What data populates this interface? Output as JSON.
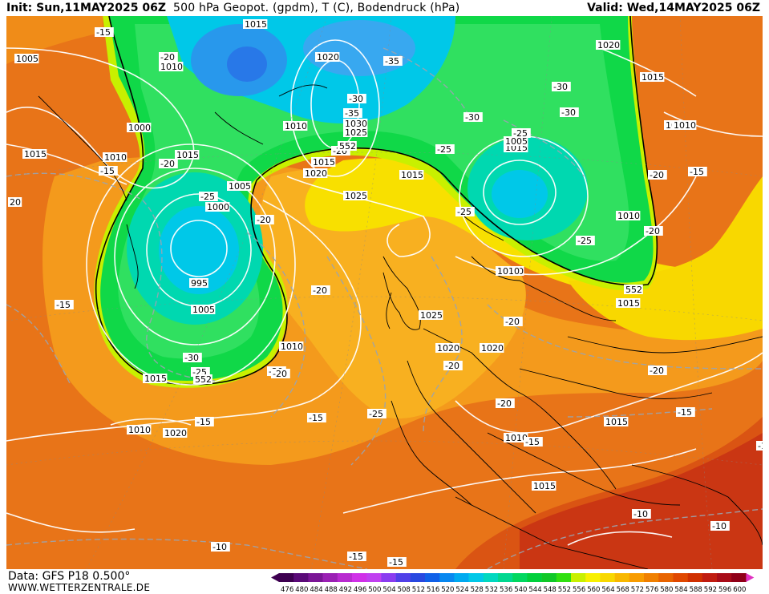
{
  "header": {
    "init": "Init: Sun,11MAY2025 06Z",
    "title": "500 hPa Geopot. (gpdm), T (C), Bodendruck (hPa)",
    "valid": "Valid: Wed,14MAY2025 06Z"
  },
  "footer": {
    "data_source": "Data: GFS P18 0.500°",
    "website": "WWW.WETTERZENTRALE.DE"
  },
  "colorbar": {
    "ticks": [
      "476",
      "480",
      "484",
      "488",
      "492",
      "496",
      "500",
      "504",
      "508",
      "512",
      "516",
      "520",
      "524",
      "528",
      "532",
      "536",
      "540",
      "544",
      "548",
      "552",
      "556",
      "560",
      "564",
      "568",
      "572",
      "576",
      "580",
      "584",
      "588",
      "592",
      "596",
      "600"
    ],
    "colors": [
      "#3d0050",
      "#5a0a78",
      "#7a1596",
      "#9a20b4",
      "#b82ad0",
      "#d030e8",
      "#c040f0",
      "#8a3cf0",
      "#5040e8",
      "#2848e0",
      "#1060e8",
      "#0888f0",
      "#00aaf0",
      "#00c8e8",
      "#00d8c0",
      "#00d890",
      "#00d860",
      "#00d03c",
      "#10c828",
      "#30e010",
      "#c8f000",
      "#f8f000",
      "#f8d800",
      "#f8b800",
      "#f89c00",
      "#f08000",
      "#e86400",
      "#e04800",
      "#d03000",
      "#c01c10",
      "#a80c18",
      "#900018"
    ],
    "min_marker": "◀",
    "max_marker": "▶"
  },
  "map": {
    "geopotential_552_label": "552",
    "pressure_labels": [
      "1015",
      "1010",
      "1005",
      "1000",
      "1015",
      "1010",
      "1020",
      "1010",
      "1030",
      "1025",
      "1015",
      "1020",
      "1015",
      "1025",
      "1005",
      "1000",
      "995",
      "1005",
      "1010",
      "1015",
      "1010",
      "1020",
      "1015",
      "1015",
      "1025",
      "1020",
      "1020",
      "1020",
      "1015",
      "1015",
      "1010",
      "1015",
      "1010",
      "1005",
      "1010",
      "1015",
      "1020",
      "1005",
      "20",
      "1010"
    ],
    "temperature_labels": [
      "-15",
      "-20",
      "-15",
      "-35",
      "-30",
      "-35",
      "-30",
      "-30",
      "-25",
      "-25",
      "-30",
      "-20",
      "-20",
      "-25",
      "-20",
      "-20",
      "-25",
      "-20",
      "-25",
      "-20",
      "-20",
      "-15",
      "-15",
      "-20",
      "-30",
      "-25",
      "-20",
      "-15",
      "-15",
      "-25",
      "-20",
      "-20",
      "-15",
      "-15",
      "-10",
      "-10",
      "-10",
      "-15",
      "-15",
      "-15",
      "-20"
    ],
    "colors": {
      "deep_orange": "#e06010",
      "orange": "#f08c18",
      "light_orange": "#f8b020",
      "yellow": "#f8e000",
      "lime": "#c8f000",
      "green": "#10d848",
      "light_green": "#30e060",
      "cyan": "#00d0e0",
      "light_blue": "#40b8f0",
      "blue": "#2090e8",
      "dark_red": "#b01818",
      "isobar": "#ffffff",
      "isotherm": "#a0a8b0",
      "coast": "#000000"
    }
  }
}
